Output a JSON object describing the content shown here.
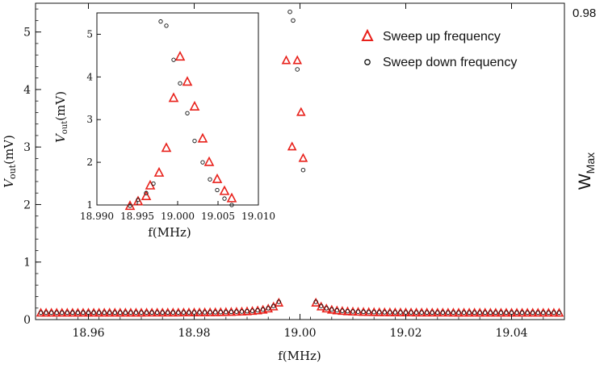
{
  "chart_data": [
    {
      "type": "scatter",
      "role": "main",
      "xlabel": "f(MHz)",
      "ylabel": {
        "symbol": "V",
        "subscript": "out",
        "unit": "(mV)"
      },
      "xlim": [
        18.95,
        19.05
      ],
      "ylim": [
        0,
        5.5
      ],
      "xticks": [
        18.96,
        18.98,
        19.0,
        19.02,
        19.04
      ],
      "xtick_labels": [
        "18.96",
        "18.98",
        "19.00",
        "19.02",
        "19.04"
      ],
      "yticks": [
        0,
        1,
        2,
        3,
        4,
        5
      ],
      "ytick_labels": [
        "0",
        "1",
        "2",
        "3",
        "4",
        "5"
      ],
      "resonance": {
        "f0": 18.9995,
        "gamma": 0.00075,
        "background": 0.11
      },
      "series": [
        {
          "name": "Sweep up frequency",
          "marker": "triangle",
          "color": "#e8211b",
          "x_start": 18.95,
          "x_end": 19.05,
          "step": 0.001,
          "peak_points": [
            [
              18.9974,
              4.5
            ],
            [
              18.9985,
              3.0
            ],
            [
              18.9995,
              4.5
            ],
            [
              19.0002,
              3.6
            ],
            [
              19.0006,
              2.8
            ]
          ]
        },
        {
          "name": "Sweep down frequency",
          "marker": "circle",
          "color": "#111111",
          "x_start": 18.95,
          "x_end": 19.05,
          "step": 0.001,
          "peak_points": [
            [
              18.9981,
              5.35
            ],
            [
              18.9987,
              5.2
            ],
            [
              18.9995,
              4.35
            ],
            [
              19.0006,
              2.6
            ]
          ]
        }
      ],
      "legend": [
        {
          "label": "Sweep up frequency",
          "marker": "triangle",
          "color": "#e8211b"
        },
        {
          "label": "Sweep down frequency",
          "marker": "circle",
          "color": "#111111"
        }
      ],
      "legend_position": "top-right"
    },
    {
      "type": "scatter",
      "role": "inset",
      "xlabel": "f(MHz)",
      "ylabel": {
        "symbol": "V",
        "subscript": "out",
        "unit": "(mV)"
      },
      "xlim": [
        18.99,
        19.01
      ],
      "ylim": [
        1,
        5.5
      ],
      "xticks": [
        18.99,
        18.995,
        19.0,
        19.005,
        19.01
      ],
      "xtick_labels": [
        "18.990",
        "18.995",
        "19.000",
        "19.005",
        "19.010"
      ],
      "yticks": [
        1,
        2,
        3,
        4,
        5
      ],
      "ytick_labels": [
        "1",
        "2",
        "3",
        "4",
        "5"
      ],
      "series": [
        {
          "name": "Sweep up frequency",
          "marker": "triangle",
          "color": "#e8211b",
          "x": [
            18.9941,
            18.9951,
            18.9961,
            18.9966,
            18.9977,
            18.9986,
            18.9995,
            19.0003,
            19.0012,
            19.0021,
            19.0031,
            19.0039,
            19.0049,
            19.0058,
            19.0067
          ],
          "y": [
            0.97,
            1.08,
            1.2,
            1.45,
            1.75,
            2.33,
            3.5,
            4.47,
            3.88,
            3.3,
            2.55,
            2.0,
            1.6,
            1.32,
            1.15
          ]
        },
        {
          "name": "Sweep down frequency",
          "marker": "circle",
          "color": "#111111",
          "x": [
            18.9941,
            18.9951,
            18.9961,
            18.997,
            18.9979,
            18.9986,
            18.9995,
            19.0003,
            19.0012,
            19.0021,
            19.0031,
            19.004,
            19.0049,
            19.0058,
            19.0067
          ],
          "y": [
            0.98,
            1.12,
            1.28,
            1.5,
            5.3,
            5.2,
            4.4,
            3.85,
            3.15,
            2.5,
            2.0,
            1.6,
            1.35,
            1.15,
            1.0
          ]
        }
      ]
    }
  ],
  "side_axis": {
    "label_main": "W",
    "label_sub": "Max",
    "value": "0.98"
  }
}
